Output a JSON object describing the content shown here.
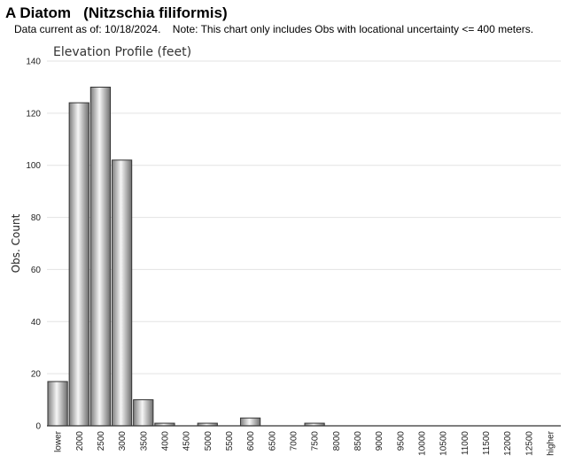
{
  "header": {
    "title": "A Diatom   (Nitzschia filiformis)",
    "note": "Data current as of: 10/18/2024.    Note: This chart only includes Obs with locational uncertainty <= 400 meters."
  },
  "chart_data": {
    "type": "bar",
    "title": "Elevation Profile (feet)",
    "xlabel": "",
    "ylabel": "Obs. Count",
    "ylim": [
      0,
      140
    ],
    "yticks": [
      0,
      20,
      40,
      60,
      80,
      100,
      120,
      140
    ],
    "grid": true,
    "categories": [
      "lower",
      "2000",
      "2500",
      "3000",
      "3500",
      "4000",
      "4500",
      "5000",
      "5500",
      "6000",
      "6500",
      "7000",
      "7500",
      "8000",
      "8500",
      "9000",
      "9500",
      "10000",
      "10500",
      "11000",
      "11500",
      "12000",
      "12500",
      "higher"
    ],
    "values": [
      17,
      124,
      130,
      102,
      10,
      1,
      0,
      1,
      0,
      3,
      0,
      0,
      1,
      0,
      0,
      0,
      0,
      0,
      0,
      0,
      0,
      0,
      0,
      0
    ],
    "colors": {
      "bar_light": "#f4f4f4",
      "bar_dark": "#7a7a7a",
      "bar_stroke": "#333333",
      "grid": "#e3e3e3",
      "axis": "#333333"
    }
  }
}
